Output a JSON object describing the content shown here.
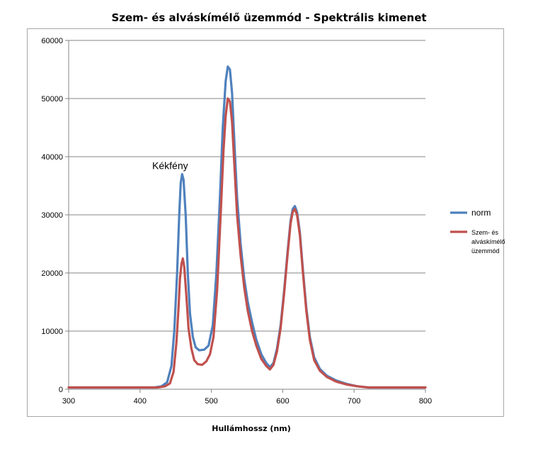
{
  "chart_data": {
    "type": "line",
    "title": "Szem- és alváskímélő üzemmód - Spektrális kimenet",
    "xlabel": "Hullámhossz (nm)",
    "ylabel": "",
    "xlim": [
      300,
      800
    ],
    "ylim": [
      0,
      60000
    ],
    "x_ticks": [
      "300",
      "400",
      "500",
      "600",
      "700",
      "800"
    ],
    "y_ticks": [
      "0",
      "10000",
      "20000",
      "30000",
      "40000",
      "50000",
      "60000"
    ],
    "grid": "horizontal",
    "legend_position": "right",
    "annotations": [
      {
        "text": "Kékfény",
        "x": 430,
        "y": 38500
      }
    ],
    "series": [
      {
        "name": "norm",
        "color": "#4f81bd",
        "points": [
          [
            300,
            300
          ],
          [
            420,
            300
          ],
          [
            430,
            500
          ],
          [
            438,
            1200
          ],
          [
            444,
            4000
          ],
          [
            448,
            10000
          ],
          [
            452,
            20000
          ],
          [
            455,
            30000
          ],
          [
            457,
            35500
          ],
          [
            459,
            37000
          ],
          [
            461,
            36000
          ],
          [
            464,
            30000
          ],
          [
            467,
            20000
          ],
          [
            470,
            13000
          ],
          [
            474,
            9000
          ],
          [
            478,
            7200
          ],
          [
            483,
            6700
          ],
          [
            490,
            6800
          ],
          [
            496,
            7500
          ],
          [
            502,
            11000
          ],
          [
            507,
            20000
          ],
          [
            512,
            33000
          ],
          [
            516,
            45000
          ],
          [
            520,
            53000
          ],
          [
            523,
            55500
          ],
          [
            526,
            55000
          ],
          [
            529,
            51000
          ],
          [
            532,
            43000
          ],
          [
            536,
            33000
          ],
          [
            541,
            25000
          ],
          [
            546,
            19000
          ],
          [
            551,
            15000
          ],
          [
            557,
            11500
          ],
          [
            563,
            8500
          ],
          [
            570,
            6000
          ],
          [
            577,
            4500
          ],
          [
            582,
            3800
          ],
          [
            587,
            4500
          ],
          [
            592,
            7000
          ],
          [
            597,
            11000
          ],
          [
            602,
            17000
          ],
          [
            607,
            24000
          ],
          [
            611,
            29000
          ],
          [
            614,
            31000
          ],
          [
            617,
            31500
          ],
          [
            620,
            30500
          ],
          [
            624,
            27000
          ],
          [
            628,
            21000
          ],
          [
            633,
            14000
          ],
          [
            638,
            9000
          ],
          [
            644,
            5500
          ],
          [
            652,
            3500
          ],
          [
            662,
            2300
          ],
          [
            675,
            1500
          ],
          [
            690,
            900
          ],
          [
            705,
            500
          ],
          [
            720,
            300
          ],
          [
            800,
            300
          ]
        ]
      },
      {
        "name": "Szem- és alváskímélő üzemmód",
        "color": "#c0504d",
        "points": [
          [
            300,
            300
          ],
          [
            425,
            300
          ],
          [
            435,
            500
          ],
          [
            442,
            1000
          ],
          [
            447,
            3000
          ],
          [
            451,
            8000
          ],
          [
            454,
            14000
          ],
          [
            456,
            19000
          ],
          [
            458,
            21500
          ],
          [
            460,
            22500
          ],
          [
            462,
            21000
          ],
          [
            465,
            16000
          ],
          [
            468,
            10500
          ],
          [
            472,
            7000
          ],
          [
            476,
            5000
          ],
          [
            481,
            4300
          ],
          [
            487,
            4200
          ],
          [
            493,
            4800
          ],
          [
            498,
            6000
          ],
          [
            503,
            9000
          ],
          [
            508,
            17000
          ],
          [
            513,
            30000
          ],
          [
            517,
            41000
          ],
          [
            520,
            47000
          ],
          [
            523,
            50000
          ],
          [
            526,
            49500
          ],
          [
            529,
            46000
          ],
          [
            532,
            39000
          ],
          [
            536,
            30000
          ],
          [
            541,
            23000
          ],
          [
            546,
            17500
          ],
          [
            551,
            13500
          ],
          [
            557,
            10000
          ],
          [
            563,
            7500
          ],
          [
            570,
            5200
          ],
          [
            577,
            4000
          ],
          [
            582,
            3400
          ],
          [
            587,
            4200
          ],
          [
            592,
            6500
          ],
          [
            597,
            10500
          ],
          [
            602,
            16500
          ],
          [
            607,
            23500
          ],
          [
            611,
            28500
          ],
          [
            614,
            30500
          ],
          [
            617,
            31000
          ],
          [
            620,
            30000
          ],
          [
            624,
            26500
          ],
          [
            628,
            20500
          ],
          [
            633,
            13500
          ],
          [
            638,
            8500
          ],
          [
            644,
            5000
          ],
          [
            652,
            3200
          ],
          [
            662,
            2100
          ],
          [
            675,
            1300
          ],
          [
            690,
            800
          ],
          [
            705,
            500
          ],
          [
            720,
            300
          ],
          [
            800,
            300
          ]
        ]
      }
    ]
  }
}
